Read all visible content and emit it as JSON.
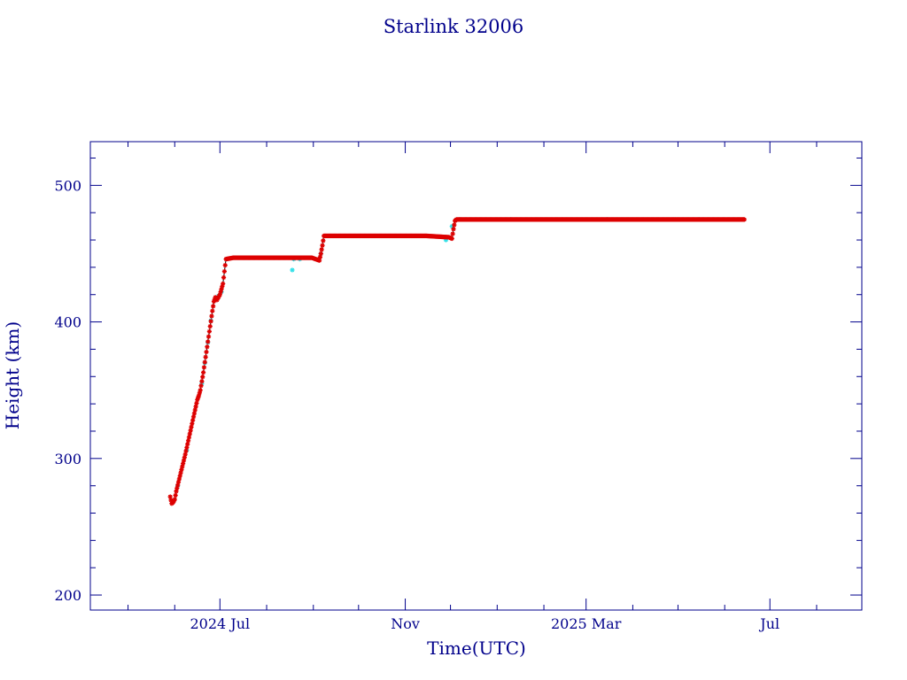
{
  "chart_data": {
    "type": "scatter",
    "title": "Starlink 32006",
    "xlabel": "Time(UTC)",
    "ylabel": "Height (km)",
    "xlim": [
      "2024-04-06",
      "2025-08-31"
    ],
    "ylim": [
      189,
      532
    ],
    "x_ticks": [
      {
        "date": "2024-07-01",
        "label": "2024 Jul"
      },
      {
        "date": "2024-11-01",
        "label": "Nov"
      },
      {
        "date": "2025-03-01",
        "label": "2025 Mar"
      },
      {
        "date": "2025-07-01",
        "label": "Jul"
      }
    ],
    "y_ticks": [
      200,
      300,
      400,
      500
    ],
    "grid": false,
    "colors": {
      "frame": "#00008b",
      "text": "#00008b",
      "primary_points": "#dd0000",
      "secondary_points": "#33e0e8",
      "connecting_line": "#000000"
    },
    "series": [
      {
        "points": [
          [
            "2024-05-29",
            272
          ],
          [
            "2024-05-30",
            267
          ],
          [
            "2024-05-31",
            268
          ],
          [
            "2024-06-01",
            270
          ],
          [
            "2024-06-02",
            276
          ],
          [
            "2024-06-04",
            285
          ],
          [
            "2024-06-06",
            294
          ],
          [
            "2024-06-08",
            303
          ],
          [
            "2024-06-10",
            313
          ],
          [
            "2024-06-12",
            323
          ],
          [
            "2024-06-14",
            333
          ],
          [
            "2024-06-16",
            343
          ],
          [
            "2024-06-17",
            346
          ],
          [
            "2024-06-18",
            350
          ],
          [
            "2024-06-20",
            363
          ],
          [
            "2024-06-22",
            378
          ],
          [
            "2024-06-24",
            393
          ],
          [
            "2024-06-26",
            408
          ],
          [
            "2024-06-27",
            415
          ],
          [
            "2024-06-28",
            418
          ],
          [
            "2024-06-29",
            416
          ],
          [
            "2024-07-01",
            420
          ],
          [
            "2024-07-03",
            428
          ],
          [
            "2024-07-05",
            446
          ],
          [
            "2024-07-10",
            447
          ],
          [
            "2024-07-20",
            447
          ],
          [
            "2024-08-01",
            447
          ],
          [
            "2024-08-10",
            447
          ],
          [
            "2024-08-20",
            447
          ],
          [
            "2024-08-31",
            447
          ],
          [
            "2024-09-05",
            445
          ],
          [
            "2024-09-06",
            450
          ],
          [
            "2024-09-07",
            456
          ],
          [
            "2024-09-08",
            463
          ],
          [
            "2024-09-20",
            463
          ],
          [
            "2024-10-01",
            463
          ],
          [
            "2024-10-15",
            463
          ],
          [
            "2024-11-01",
            463
          ],
          [
            "2024-11-15",
            463
          ],
          [
            "2024-11-30",
            462
          ],
          [
            "2024-12-02",
            461
          ],
          [
            "2024-12-03",
            468
          ],
          [
            "2024-12-04",
            474
          ],
          [
            "2024-12-05",
            475
          ],
          [
            "2024-12-20",
            475
          ],
          [
            "2025-01-01",
            475
          ],
          [
            "2025-01-20",
            475
          ],
          [
            "2025-02-10",
            475
          ],
          [
            "2025-03-01",
            475
          ],
          [
            "2025-03-20",
            475
          ],
          [
            "2025-04-10",
            475
          ],
          [
            "2025-05-01",
            475
          ],
          [
            "2025-05-20",
            475
          ],
          [
            "2025-06-10",
            475
          ],
          [
            "2025-06-14",
            475
          ]
        ]
      },
      {
        "points": [
          [
            "2024-06-03",
            280
          ],
          [
            "2024-06-09",
            306
          ],
          [
            "2024-06-19",
            355
          ],
          [
            "2024-06-21",
            370
          ],
          [
            "2024-06-23",
            385
          ],
          [
            "2024-06-25",
            401
          ],
          [
            "2024-06-30",
            419
          ],
          [
            "2024-07-02",
            422
          ],
          [
            "2024-08-18",
            438
          ],
          [
            "2024-08-19",
            446
          ],
          [
            "2024-08-23",
            446
          ],
          [
            "2024-09-06",
            450
          ],
          [
            "2024-11-28",
            460
          ],
          [
            "2024-12-02",
            470
          ],
          [
            "2024-12-07",
            475
          ],
          [
            "2025-01-10",
            475
          ],
          [
            "2025-03-15",
            475
          ],
          [
            "2025-05-15",
            475
          ]
        ]
      }
    ]
  }
}
